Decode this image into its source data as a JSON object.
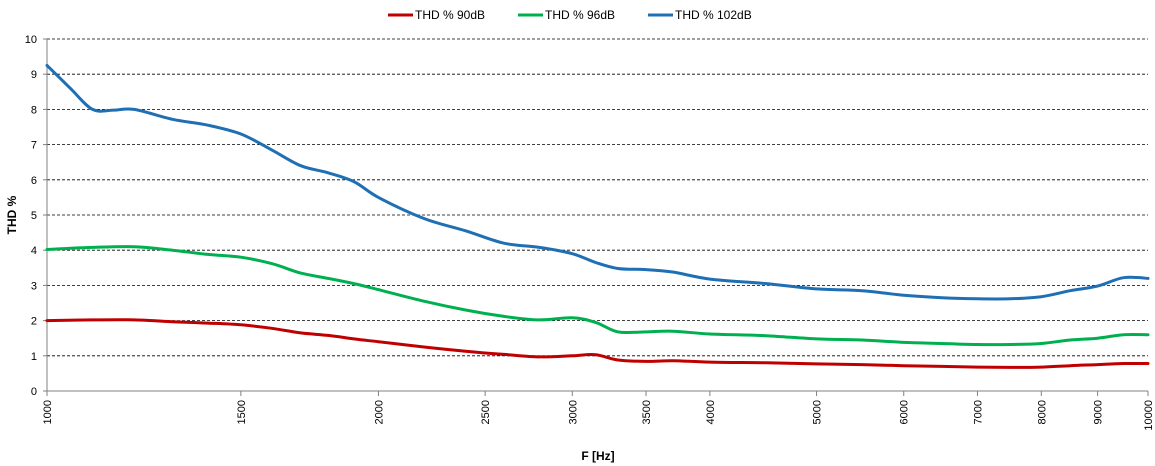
{
  "chart_data": {
    "type": "line",
    "xlabel": "F [Hz]",
    "ylabel": "THD %",
    "x_scale": "log",
    "xlim": [
      1000,
      10000
    ],
    "ylim": [
      0,
      10
    ],
    "x_ticks": [
      "1000",
      "1500",
      "2000",
      "2500",
      "3000",
      "3500",
      "4000",
      "5000",
      "6000",
      "7000",
      "8000",
      "9000",
      "10000"
    ],
    "y_ticks": [
      "0",
      "1",
      "2",
      "3",
      "4",
      "5",
      "6",
      "7",
      "8",
      "9",
      "10"
    ],
    "grid": "horizontal dashed",
    "legend_position": "top",
    "series": [
      {
        "name": "THD % 90dB",
        "color": "#c00000",
        "points": [
          [
            1000,
            2.0
          ],
          [
            1100,
            2.02
          ],
          [
            1200,
            2.02
          ],
          [
            1300,
            1.97
          ],
          [
            1400,
            1.93
          ],
          [
            1500,
            1.88
          ],
          [
            1600,
            1.78
          ],
          [
            1700,
            1.65
          ],
          [
            1800,
            1.58
          ],
          [
            1900,
            1.48
          ],
          [
            2000,
            1.4
          ],
          [
            2200,
            1.25
          ],
          [
            2400,
            1.13
          ],
          [
            2600,
            1.04
          ],
          [
            2800,
            0.97
          ],
          [
            3000,
            1.0
          ],
          [
            3150,
            1.03
          ],
          [
            3300,
            0.88
          ],
          [
            3500,
            0.84
          ],
          [
            3700,
            0.86
          ],
          [
            4000,
            0.82
          ],
          [
            4500,
            0.8
          ],
          [
            5000,
            0.77
          ],
          [
            5500,
            0.75
          ],
          [
            6000,
            0.72
          ],
          [
            6500,
            0.7
          ],
          [
            7000,
            0.68
          ],
          [
            7500,
            0.67
          ],
          [
            8000,
            0.68
          ],
          [
            8500,
            0.72
          ],
          [
            9000,
            0.75
          ],
          [
            9500,
            0.78
          ],
          [
            10000,
            0.78
          ]
        ]
      },
      {
        "name": "THD % 96dB",
        "color": "#00b050",
        "points": [
          [
            1000,
            4.02
          ],
          [
            1100,
            4.08
          ],
          [
            1200,
            4.1
          ],
          [
            1300,
            4.0
          ],
          [
            1400,
            3.88
          ],
          [
            1500,
            3.8
          ],
          [
            1600,
            3.62
          ],
          [
            1700,
            3.35
          ],
          [
            1800,
            3.2
          ],
          [
            1900,
            3.05
          ],
          [
            2000,
            2.88
          ],
          [
            2200,
            2.55
          ],
          [
            2400,
            2.3
          ],
          [
            2600,
            2.12
          ],
          [
            2800,
            2.02
          ],
          [
            3000,
            2.08
          ],
          [
            3150,
            1.95
          ],
          [
            3300,
            1.68
          ],
          [
            3500,
            1.68
          ],
          [
            3700,
            1.7
          ],
          [
            4000,
            1.62
          ],
          [
            4500,
            1.57
          ],
          [
            5000,
            1.48
          ],
          [
            5500,
            1.45
          ],
          [
            6000,
            1.38
          ],
          [
            6500,
            1.35
          ],
          [
            7000,
            1.32
          ],
          [
            7500,
            1.32
          ],
          [
            8000,
            1.35
          ],
          [
            8500,
            1.45
          ],
          [
            9000,
            1.5
          ],
          [
            9500,
            1.6
          ],
          [
            10000,
            1.6
          ]
        ]
      },
      {
        "name": "THD % 102dB",
        "color": "#1f6fb4",
        "points": [
          [
            1000,
            9.25
          ],
          [
            1050,
            8.6
          ],
          [
            1100,
            8.0
          ],
          [
            1150,
            7.98
          ],
          [
            1200,
            8.0
          ],
          [
            1300,
            7.72
          ],
          [
            1400,
            7.55
          ],
          [
            1500,
            7.3
          ],
          [
            1600,
            6.85
          ],
          [
            1700,
            6.4
          ],
          [
            1800,
            6.2
          ],
          [
            1900,
            5.95
          ],
          [
            2000,
            5.5
          ],
          [
            2200,
            4.9
          ],
          [
            2400,
            4.55
          ],
          [
            2600,
            4.2
          ],
          [
            2800,
            4.08
          ],
          [
            3000,
            3.9
          ],
          [
            3150,
            3.65
          ],
          [
            3300,
            3.48
          ],
          [
            3500,
            3.45
          ],
          [
            3700,
            3.38
          ],
          [
            4000,
            3.18
          ],
          [
            4500,
            3.05
          ],
          [
            5000,
            2.9
          ],
          [
            5500,
            2.85
          ],
          [
            6000,
            2.72
          ],
          [
            6500,
            2.65
          ],
          [
            7000,
            2.62
          ],
          [
            7500,
            2.62
          ],
          [
            8000,
            2.68
          ],
          [
            8500,
            2.85
          ],
          [
            9000,
            2.98
          ],
          [
            9500,
            3.22
          ],
          [
            10000,
            3.2
          ]
        ]
      }
    ]
  }
}
